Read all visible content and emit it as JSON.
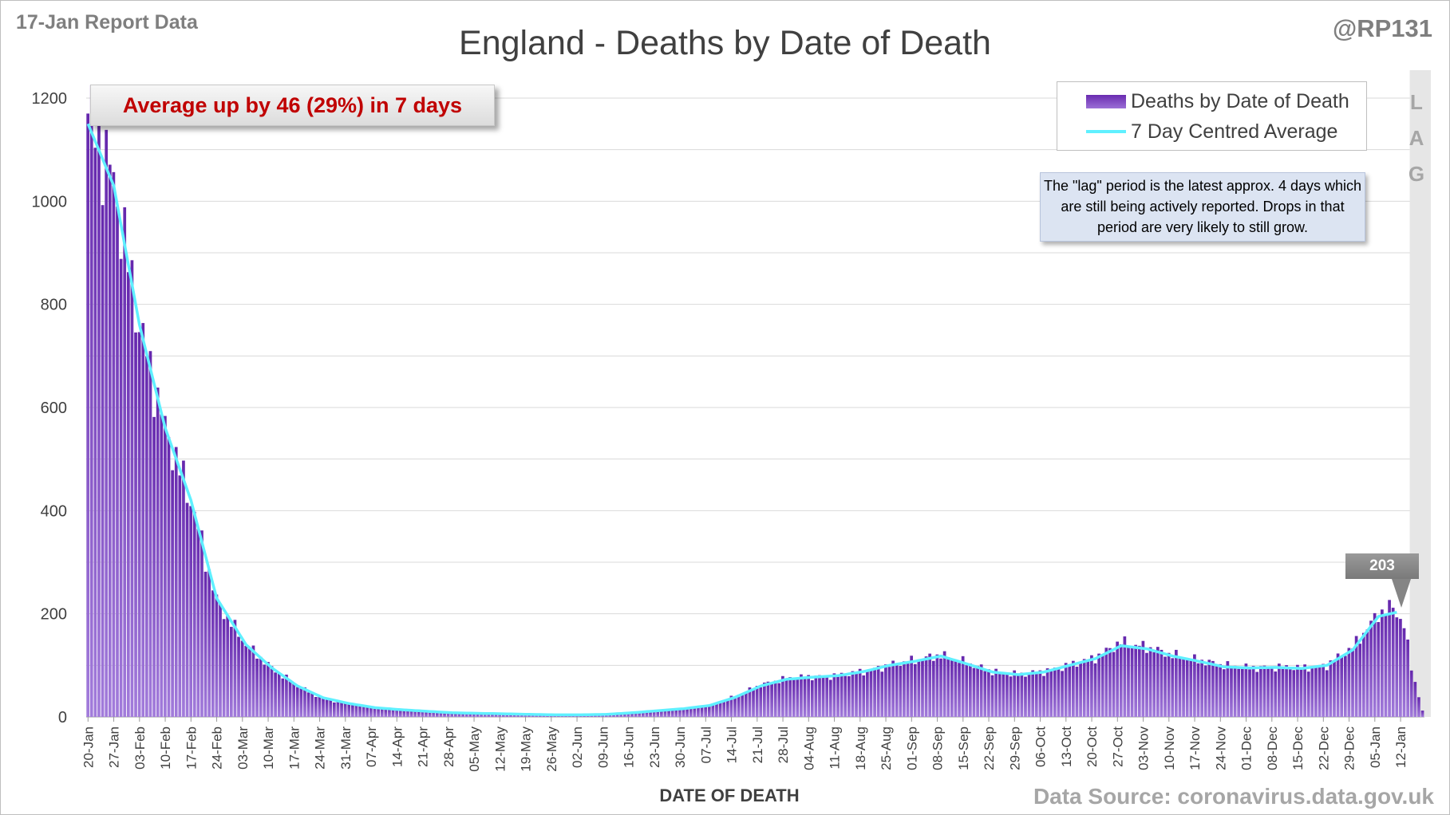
{
  "report_label": "17-Jan Report Data",
  "handle": "@RP131",
  "source": "Data Source: coronavirus.data.gov.uk",
  "callout": "Average up by 46 (29%) in 7 days",
  "lag_note": "The \"lag\" period is the latest approx. 4 days which are still being actively reported. Drops in that period are very likely to still grow.",
  "lag_letters": [
    "L",
    "A",
    "G"
  ],
  "colors": {
    "bars": "#7030a0",
    "average_line": "#5ff0ff",
    "callout_text": "#c00000",
    "lag_band": "#e6e6e6",
    "lag_note_bg": "#dce4f2"
  },
  "chart_data": {
    "type": "bar",
    "title": "England - Deaths by Date of Death",
    "xlabel": "DATE OF DEATH",
    "ylabel": "",
    "ylim": [
      0,
      1200
    ],
    "yticks": [
      0,
      200,
      400,
      600,
      800,
      1000,
      1200
    ],
    "grid": true,
    "legend_position": "top-right",
    "x_start_date": "2020-01-20",
    "x_end_date": "2021-01-17",
    "xtick_labels": [
      "20-Jan",
      "27-Jan",
      "03-Feb",
      "10-Feb",
      "17-Feb",
      "24-Feb",
      "03-Mar",
      "10-Mar",
      "17-Mar",
      "24-Mar",
      "31-Mar",
      "07-Apr",
      "14-Apr",
      "21-Apr",
      "28-Apr",
      "05-May",
      "12-May",
      "19-May",
      "26-May",
      "02-Jun",
      "09-Jun",
      "16-Jun",
      "23-Jun",
      "30-Jun",
      "07-Jul",
      "14-Jul",
      "21-Jul",
      "28-Jul",
      "04-Aug",
      "11-Aug",
      "18-Aug",
      "25-Aug",
      "01-Sep",
      "08-Sep",
      "15-Sep",
      "22-Sep",
      "29-Sep",
      "06-Oct",
      "13-Oct",
      "20-Oct",
      "27-Oct",
      "03-Nov",
      "10-Nov",
      "17-Nov",
      "24-Nov",
      "01-Dec",
      "08-Dec",
      "15-Dec",
      "22-Dec",
      "29-Dec",
      "05-Jan",
      "12-Jan"
    ],
    "series": [
      {
        "name": "Deaths by Date of Death",
        "type": "bar",
        "anchor_dates": [
          "2020-01-20",
          "2020-01-27",
          "2020-02-03",
          "2020-02-10",
          "2020-02-17",
          "2020-02-24",
          "2020-03-03",
          "2020-03-10",
          "2020-03-17",
          "2020-03-24",
          "2020-03-31",
          "2020-04-07",
          "2020-04-14",
          "2020-04-21",
          "2020-04-28",
          "2020-05-05",
          "2020-05-12",
          "2020-05-19",
          "2020-05-26",
          "2020-06-02",
          "2020-06-09",
          "2020-06-16",
          "2020-06-23",
          "2020-06-30",
          "2020-07-07",
          "2020-07-14",
          "2020-07-21",
          "2020-07-28",
          "2020-08-04",
          "2020-08-11",
          "2020-08-18",
          "2020-08-25",
          "2020-09-01",
          "2020-09-08",
          "2020-09-15",
          "2020-09-22",
          "2020-09-29",
          "2020-10-06",
          "2020-10-13",
          "2020-10-20",
          "2020-10-27",
          "2020-11-03",
          "2020-11-10",
          "2020-11-17",
          "2020-11-24",
          "2020-12-01",
          "2020-12-08",
          "2020-12-15",
          "2020-12-22",
          "2020-12-29",
          "2021-01-05",
          "2021-01-09",
          "2021-01-12",
          "2021-01-14",
          "2021-01-16",
          "2021-01-17"
        ],
        "anchor_values": [
          1170,
          1040,
          760,
          560,
          420,
          225,
          140,
          95,
          60,
          35,
          25,
          18,
          14,
          11,
          8,
          7,
          6,
          5,
          4,
          4,
          5,
          8,
          12,
          16,
          22,
          40,
          62,
          75,
          78,
          80,
          88,
          100,
          110,
          120,
          105,
          88,
          82,
          88,
          100,
          115,
          145,
          135,
          120,
          110,
          100,
          95,
          97,
          95,
          100,
          135,
          200,
          213,
          178,
          95,
          40,
          12
        ],
        "anchor_date_values": [
          {
            "date": "2020-01-20",
            "value": 1170
          },
          {
            "date": "2021-01-10",
            "value": 213
          },
          {
            "date": "2021-01-13",
            "value": 175
          },
          {
            "date": "2021-01-15",
            "value": 38
          },
          {
            "date": "2021-01-17",
            "value": 12
          }
        ]
      },
      {
        "name": "7 Day Centred Average",
        "type": "line",
        "anchor_dates": [
          "2020-01-20",
          "2020-01-27",
          "2020-02-03",
          "2020-02-10",
          "2020-02-17",
          "2020-02-24",
          "2020-03-03",
          "2020-03-10",
          "2020-03-17",
          "2020-03-24",
          "2020-03-31",
          "2020-04-07",
          "2020-04-14",
          "2020-04-21",
          "2020-04-28",
          "2020-05-05",
          "2020-05-12",
          "2020-05-19",
          "2020-05-26",
          "2020-06-02",
          "2020-06-09",
          "2020-06-16",
          "2020-06-23",
          "2020-06-30",
          "2020-07-07",
          "2020-07-14",
          "2020-07-21",
          "2020-07-28",
          "2020-08-04",
          "2020-08-11",
          "2020-08-18",
          "2020-08-25",
          "2020-09-01",
          "2020-09-08",
          "2020-09-15",
          "2020-09-22",
          "2020-09-29",
          "2020-10-06",
          "2020-10-13",
          "2020-10-20",
          "2020-10-27",
          "2020-11-03",
          "2020-11-10",
          "2020-11-17",
          "2020-11-24",
          "2020-12-01",
          "2020-12-08",
          "2020-12-15",
          "2020-12-22",
          "2020-12-29",
          "2021-01-05",
          "2021-01-10"
        ],
        "anchor_values": [
          1150,
          1030,
          760,
          560,
          420,
          230,
          140,
          95,
          60,
          37,
          26,
          18,
          14,
          11,
          8,
          7,
          6,
          5,
          4,
          4,
          5,
          8,
          12,
          16,
          22,
          38,
          60,
          73,
          77,
          80,
          88,
          100,
          108,
          118,
          103,
          87,
          82,
          87,
          100,
          113,
          138,
          132,
          118,
          108,
          97,
          95,
          96,
          94,
          100,
          130,
          195,
          203
        ]
      }
    ],
    "annotations": [
      {
        "type": "peak_label",
        "date": "2021-01-10",
        "value": 203,
        "text": "203"
      },
      {
        "type": "lag_period",
        "start_date": "2021-01-14",
        "end_date": "2021-01-17",
        "text": "LAG"
      }
    ]
  }
}
